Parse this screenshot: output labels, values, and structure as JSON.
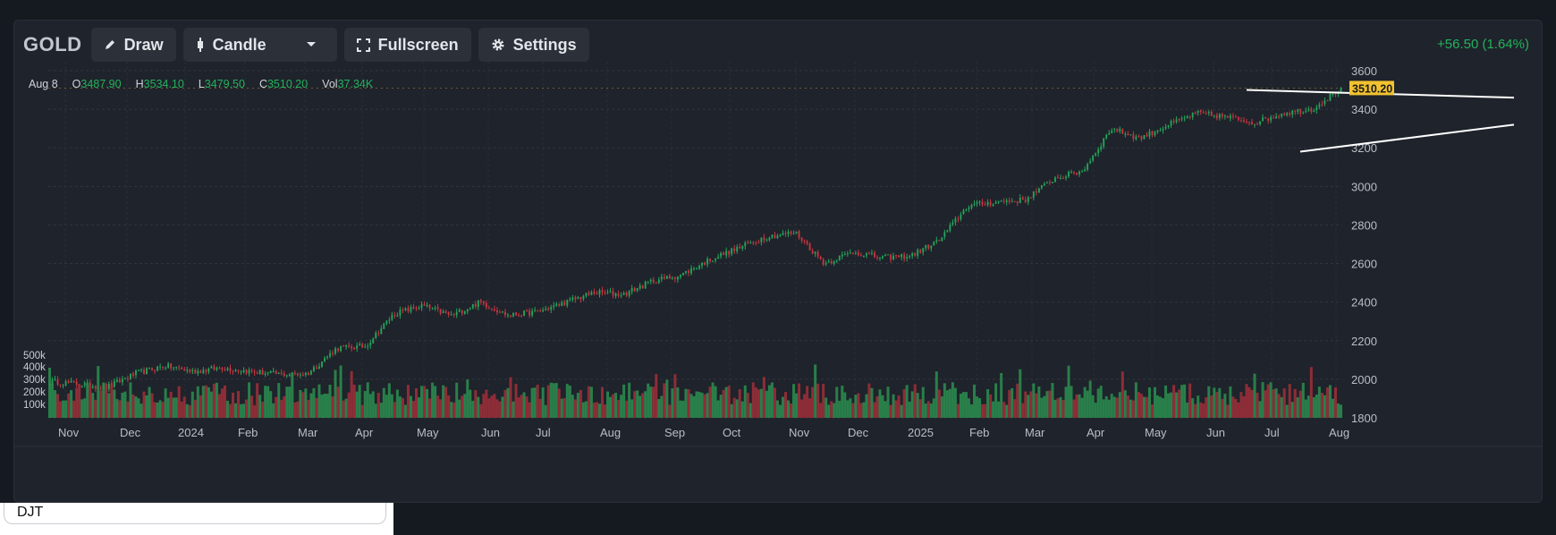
{
  "toolbar": {
    "symbol": "GOLD",
    "draw_label": "Draw",
    "chart_type_label": "Candle",
    "fullscreen_label": "Fullscreen",
    "settings_label": "Settings"
  },
  "change_text": "+56.50 (1.64%)",
  "ohlc": {
    "date": "Aug 8",
    "o_label": "O",
    "o_value": "3487.90",
    "h_label": "H",
    "h_value": "3534.10",
    "l_label": "L",
    "l_value": "3479.50",
    "c_label": "C",
    "c_value": "3510.20",
    "vol_label": "Vol",
    "vol_value": "37.34K"
  },
  "colors": {
    "up": "#22a55a",
    "down": "#c8353f",
    "price_tag": "#f2c230",
    "background": "#1f232b"
  },
  "bottom_tab_label": "DJT",
  "chart_data": {
    "type": "candlestick",
    "price_axis_ticks": [
      1800,
      2000,
      2200,
      2400,
      2600,
      2800,
      3000,
      3200,
      3400,
      3600
    ],
    "price_range": [
      1800,
      3600
    ],
    "volume_axis_ticks": [
      "100k",
      "200k",
      "300k",
      "400k",
      "500k"
    ],
    "time_axis_labels": [
      "Nov",
      "Dec",
      "2024",
      "Feb",
      "Mar",
      "Apr",
      "May",
      "Jun",
      "Jul",
      "Aug",
      "Sep",
      "Oct",
      "Nov",
      "Dec",
      "2025",
      "Feb",
      "Mar",
      "Apr",
      "May",
      "Jun",
      "Jul",
      "Aug"
    ],
    "last_price": "3510.20",
    "close_path": [
      [
        "Nov",
        1990
      ],
      [
        "Nov",
        1975
      ],
      [
        "Nov",
        1960
      ],
      [
        "Dec",
        2030
      ],
      [
        "Dec",
        2070
      ],
      [
        "Dec",
        2040
      ],
      [
        "2024",
        2060
      ],
      [
        "2024",
        2040
      ],
      [
        "Feb",
        2025
      ],
      [
        "Feb",
        2030
      ],
      [
        "Mar",
        2160
      ],
      [
        "Mar",
        2170
      ],
      [
        "Apr",
        2340
      ],
      [
        "Apr",
        2380
      ],
      [
        "May",
        2330
      ],
      [
        "May",
        2400
      ],
      [
        "Jun",
        2330
      ],
      [
        "Jun",
        2350
      ],
      [
        "Jul",
        2400
      ],
      [
        "Jul",
        2450
      ],
      [
        "Aug",
        2440
      ],
      [
        "Aug",
        2510
      ],
      [
        "Sep",
        2540
      ],
      [
        "Sep",
        2620
      ],
      [
        "Oct",
        2680
      ],
      [
        "Oct",
        2740
      ],
      [
        "Nov",
        2760
      ],
      [
        "Nov",
        2600
      ],
      [
        "Dec",
        2660
      ],
      [
        "Dec",
        2630
      ],
      [
        "2025",
        2640
      ],
      [
        "2025",
        2720
      ],
      [
        "Feb",
        2900
      ],
      [
        "Feb",
        2920
      ],
      [
        "Mar",
        2930
      ],
      [
        "Mar",
        3040
      ],
      [
        "Apr",
        3080
      ],
      [
        "Apr",
        3300
      ],
      [
        "May",
        3250
      ],
      [
        "May",
        3320
      ],
      [
        "Jun",
        3380
      ],
      [
        "Jun",
        3360
      ],
      [
        "Jul",
        3330
      ],
      [
        "Jul",
        3380
      ],
      [
        "Aug",
        3400
      ],
      [
        "Aug",
        3510
      ]
    ],
    "trendlines": [
      {
        "name": "upper",
        "from": [
          "Apr",
          3500
        ],
        "to": [
          "Aug",
          3460
        ]
      },
      {
        "name": "lower",
        "from": [
          "May",
          3180
        ],
        "to": [
          "Aug",
          3320
        ]
      }
    ]
  }
}
